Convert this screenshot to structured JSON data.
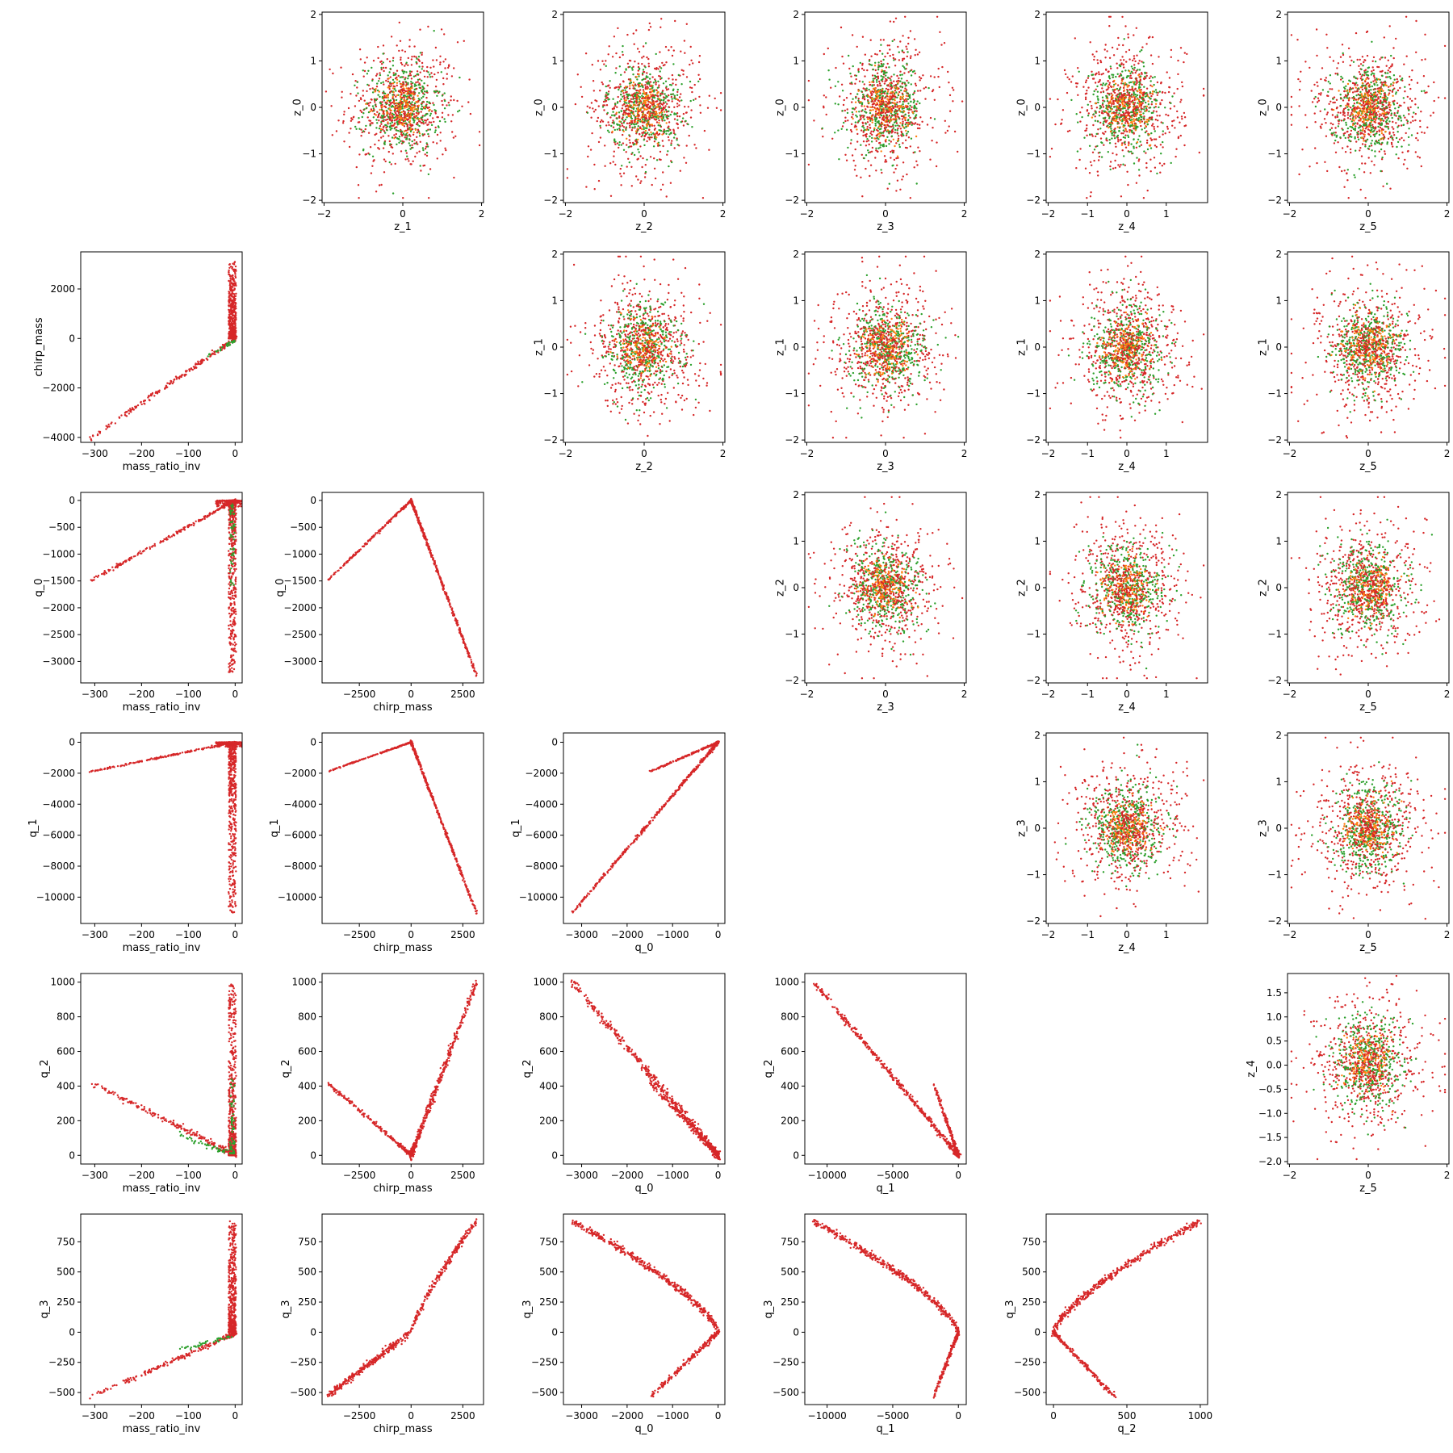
{
  "figure": {
    "type": "pair-scatter-grid",
    "layout": "upper triangle: latent z vs z; lower triangle: physical quantities vs physical quantities; diagonal empty",
    "point_colors": {
      "red": "#d62728",
      "green": "#2ca02c",
      "orange": "#ff7f0e"
    }
  },
  "chart_data": [
    {
      "type": "scatter",
      "xlabel": "z_1",
      "ylabel": "z_0",
      "xlim": [
        -2.05,
        2.05
      ],
      "ylim": [
        -2.05,
        2.05
      ],
      "xticks": [
        -2,
        0,
        2
      ],
      "yticks": [
        -2,
        -1,
        0,
        1,
        2
      ]
    },
    {
      "type": "scatter",
      "xlabel": "z_2",
      "ylabel": "z_0",
      "xlim": [
        -2.05,
        2.05
      ],
      "ylim": [
        -2.05,
        2.05
      ],
      "xticks": [
        -2,
        0,
        2
      ],
      "yticks": [
        -2,
        -1,
        0,
        1,
        2
      ]
    },
    {
      "type": "scatter",
      "xlabel": "z_3",
      "ylabel": "z_0",
      "xlim": [
        -2.05,
        2.05
      ],
      "ylim": [
        -2.05,
        2.05
      ],
      "xticks": [
        -2,
        0,
        2
      ],
      "yticks": [
        -2,
        -1,
        0,
        1,
        2
      ]
    },
    {
      "type": "scatter",
      "xlabel": "z_4",
      "ylabel": "z_0",
      "xlim": [
        -2.05,
        2.05
      ],
      "ylim": [
        -2.05,
        2.05
      ],
      "xticks": [
        -2,
        -1,
        0,
        1
      ],
      "yticks": [
        -2,
        -1,
        0,
        1,
        2
      ]
    },
    {
      "type": "scatter",
      "xlabel": "z_5",
      "ylabel": "z_0",
      "xlim": [
        -2.05,
        2.05
      ],
      "ylim": [
        -2.05,
        2.05
      ],
      "xticks": [
        -2,
        0,
        2
      ],
      "yticks": [
        -2,
        -1,
        0,
        1,
        2
      ]
    },
    {
      "type": "scatter",
      "xlabel": "mass_ratio_inv",
      "ylabel": "chirp_mass",
      "xlim": [
        -330,
        15
      ],
      "ylim": [
        -4200,
        3500
      ],
      "xticks": [
        -300,
        -200,
        -100,
        0
      ],
      "yticks": [
        -4000,
        -2000,
        0,
        2000
      ]
    },
    {
      "type": "scatter",
      "xlabel": "z_2",
      "ylabel": "z_1",
      "xlim": [
        -2.05,
        2.05
      ],
      "ylim": [
        -2.05,
        2.05
      ],
      "xticks": [
        -2,
        0,
        2
      ],
      "yticks": [
        -2,
        -1,
        0,
        1,
        2
      ]
    },
    {
      "type": "scatter",
      "xlabel": "z_3",
      "ylabel": "z_1",
      "xlim": [
        -2.05,
        2.05
      ],
      "ylim": [
        -2.05,
        2.05
      ],
      "xticks": [
        -2,
        0,
        2
      ],
      "yticks": [
        -2,
        -1,
        0,
        1,
        2
      ]
    },
    {
      "type": "scatter",
      "xlabel": "z_4",
      "ylabel": "z_1",
      "xlim": [
        -2.05,
        2.05
      ],
      "ylim": [
        -2.05,
        2.05
      ],
      "xticks": [
        -2,
        -1,
        0,
        1
      ],
      "yticks": [
        -2,
        -1,
        0,
        1,
        2
      ]
    },
    {
      "type": "scatter",
      "xlabel": "z_5",
      "ylabel": "z_1",
      "xlim": [
        -2.05,
        2.05
      ],
      "ylim": [
        -2.05,
        2.05
      ],
      "xticks": [
        -2,
        0,
        2
      ],
      "yticks": [
        -2,
        -1,
        0,
        1,
        2
      ]
    },
    {
      "type": "scatter",
      "xlabel": "mass_ratio_inv",
      "ylabel": "q_0",
      "xlim": [
        -330,
        15
      ],
      "ylim": [
        -3400,
        150
      ],
      "xticks": [
        -300,
        -200,
        -100,
        0
      ],
      "yticks": [
        -3000,
        -2500,
        -2000,
        -1500,
        -1000,
        -500,
        0
      ]
    },
    {
      "type": "scatter",
      "xlabel": "chirp_mass",
      "ylabel": "q_0",
      "xlim": [
        -4300,
        3500
      ],
      "ylim": [
        -3400,
        150
      ],
      "xticks": [
        -2500,
        0,
        2500
      ],
      "yticks": [
        -3000,
        -2500,
        -2000,
        -1500,
        -1000,
        -500,
        0
      ]
    },
    {
      "type": "scatter",
      "xlabel": "z_3",
      "ylabel": "z_2",
      "xlim": [
        -2.05,
        2.05
      ],
      "ylim": [
        -2.05,
        2.05
      ],
      "xticks": [
        -2,
        0,
        2
      ],
      "yticks": [
        -2,
        -1,
        0,
        1,
        2
      ]
    },
    {
      "type": "scatter",
      "xlabel": "z_4",
      "ylabel": "z_2",
      "xlim": [
        -2.05,
        2.05
      ],
      "ylim": [
        -2.05,
        2.05
      ],
      "xticks": [
        -2,
        -1,
        0,
        1
      ],
      "yticks": [
        -2,
        -1,
        0,
        1,
        2
      ]
    },
    {
      "type": "scatter",
      "xlabel": "z_5",
      "ylabel": "z_2",
      "xlim": [
        -2.05,
        2.05
      ],
      "ylim": [
        -2.05,
        2.05
      ],
      "xticks": [
        -2,
        0,
        2
      ],
      "yticks": [
        -2,
        -1,
        0,
        1,
        2
      ]
    },
    {
      "type": "scatter",
      "xlabel": "mass_ratio_inv",
      "ylabel": "q_1",
      "xlim": [
        -330,
        15
      ],
      "ylim": [
        -11700,
        600
      ],
      "xticks": [
        -300,
        -200,
        -100,
        0
      ],
      "yticks": [
        -10000,
        -8000,
        -6000,
        -4000,
        -2000,
        0
      ]
    },
    {
      "type": "scatter",
      "xlabel": "chirp_mass",
      "ylabel": "q_1",
      "xlim": [
        -4300,
        3500
      ],
      "ylim": [
        -11700,
        600
      ],
      "xticks": [
        -2500,
        0,
        2500
      ],
      "yticks": [
        -10000,
        -8000,
        -6000,
        -4000,
        -2000,
        0
      ]
    },
    {
      "type": "scatter",
      "xlabel": "q_0",
      "ylabel": "q_1",
      "xlim": [
        -3400,
        150
      ],
      "ylim": [
        -11700,
        600
      ],
      "xticks": [
        -3000,
        -2000,
        -1000,
        0
      ],
      "yticks": [
        -10000,
        -8000,
        -6000,
        -4000,
        -2000,
        0
      ]
    },
    {
      "type": "scatter",
      "xlabel": "z_4",
      "ylabel": "z_3",
      "xlim": [
        -2.05,
        2.05
      ],
      "ylim": [
        -2.05,
        2.05
      ],
      "xticks": [
        -2,
        -1,
        0,
        1
      ],
      "yticks": [
        -2,
        -1,
        0,
        1,
        2
      ]
    },
    {
      "type": "scatter",
      "xlabel": "z_5",
      "ylabel": "z_3",
      "xlim": [
        -2.05,
        2.05
      ],
      "ylim": [
        -2.05,
        2.05
      ],
      "xticks": [
        -2,
        0,
        2
      ],
      "yticks": [
        -2,
        -1,
        0,
        1,
        2
      ]
    },
    {
      "type": "scatter",
      "xlabel": "mass_ratio_inv",
      "ylabel": "q_2",
      "xlim": [
        -330,
        15
      ],
      "ylim": [
        -50,
        1050
      ],
      "xticks": [
        -300,
        -200,
        -100,
        0
      ],
      "yticks": [
        0,
        200,
        400,
        600,
        800,
        1000
      ]
    },
    {
      "type": "scatter",
      "xlabel": "chirp_mass",
      "ylabel": "q_2",
      "xlim": [
        -4300,
        3500
      ],
      "ylim": [
        -50,
        1050
      ],
      "xticks": [
        -2500,
        0,
        2500
      ],
      "yticks": [
        0,
        200,
        400,
        600,
        800,
        1000
      ]
    },
    {
      "type": "scatter",
      "xlabel": "q_0",
      "ylabel": "q_2",
      "xlim": [
        -3400,
        150
      ],
      "ylim": [
        -50,
        1050
      ],
      "xticks": [
        -3000,
        -2000,
        -1000,
        0
      ],
      "yticks": [
        0,
        200,
        400,
        600,
        800,
        1000
      ]
    },
    {
      "type": "scatter",
      "xlabel": "q_1",
      "ylabel": "q_2",
      "xlim": [
        -11700,
        600
      ],
      "ylim": [
        -50,
        1050
      ],
      "xticks": [
        -10000,
        -5000,
        0
      ],
      "yticks": [
        0,
        200,
        400,
        600,
        800,
        1000
      ]
    },
    {
      "type": "scatter",
      "xlabel": "z_5",
      "ylabel": "z_4",
      "xlim": [
        -2.05,
        2.05
      ],
      "ylim": [
        -2.05,
        1.9
      ],
      "xticks": [
        -2,
        0,
        2
      ],
      "yticks": [
        -2.0,
        -1.5,
        -1.0,
        -0.5,
        0.0,
        0.5,
        1.0,
        1.5
      ]
    },
    {
      "type": "scatter",
      "xlabel": "mass_ratio_inv",
      "ylabel": "q_3",
      "xlim": [
        -330,
        15
      ],
      "ylim": [
        -600,
        980
      ],
      "xticks": [
        -300,
        -200,
        -100,
        0
      ],
      "yticks": [
        -500,
        -250,
        0,
        250,
        500,
        750
      ]
    },
    {
      "type": "scatter",
      "xlabel": "chirp_mass",
      "ylabel": "q_3",
      "xlim": [
        -4300,
        3500
      ],
      "ylim": [
        -600,
        980
      ],
      "xticks": [
        -2500,
        0,
        2500
      ],
      "yticks": [
        -500,
        -250,
        0,
        250,
        500,
        750
      ]
    },
    {
      "type": "scatter",
      "xlabel": "q_0",
      "ylabel": "q_3",
      "xlim": [
        -3400,
        150
      ],
      "ylim": [
        -600,
        980
      ],
      "xticks": [
        -3000,
        -2000,
        -1000,
        0
      ],
      "yticks": [
        -500,
        -250,
        0,
        250,
        500,
        750
      ]
    },
    {
      "type": "scatter",
      "xlabel": "q_1",
      "ylabel": "q_3",
      "xlim": [
        -11700,
        600
      ],
      "ylim": [
        -600,
        980
      ],
      "xticks": [
        -10000,
        -5000,
        0
      ],
      "yticks": [
        -500,
        -250,
        0,
        250,
        500,
        750
      ]
    },
    {
      "type": "scatter",
      "xlabel": "q_2",
      "ylabel": "q_3",
      "xlim": [
        -50,
        1050
      ],
      "ylim": [
        -600,
        980
      ],
      "xticks": [
        0,
        500,
        1000
      ],
      "yticks": [
        -500,
        -250,
        0,
        250,
        500,
        750
      ]
    }
  ]
}
